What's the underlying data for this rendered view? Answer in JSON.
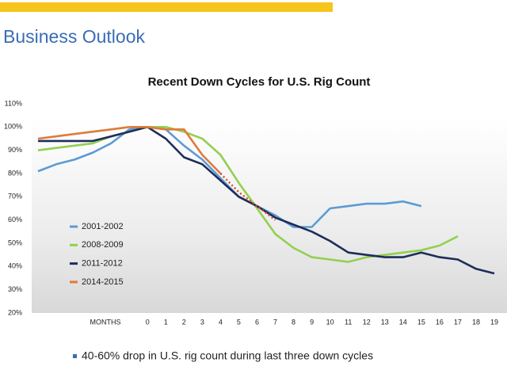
{
  "page_title": "Business Outlook",
  "footnote": "40-60% drop in U.S. rig count during last three down cycles",
  "chart_data": {
    "type": "line",
    "title": "Recent Down Cycles for U.S. Rig Count",
    "x_label": "MONTHS",
    "categories": [
      null,
      null,
      null,
      null,
      null,
      null,
      "0",
      "1",
      "2",
      "3",
      "4",
      "5",
      "6",
      "7",
      "8",
      "9",
      "10",
      "11",
      "12",
      "13",
      "14",
      "15",
      "16",
      "17",
      "18",
      "19"
    ],
    "ylim": [
      20,
      110
    ],
    "yticks": [
      {
        "value": 20,
        "label": "20%"
      },
      {
        "value": 30,
        "label": "30%"
      },
      {
        "value": 40,
        "label": "40%"
      },
      {
        "value": 50,
        "label": "50%"
      },
      {
        "value": 60,
        "label": "60%"
      },
      {
        "value": 70,
        "label": "70%"
      },
      {
        "value": 80,
        "label": "80%"
      },
      {
        "value": 90,
        "label": "90%"
      },
      {
        "value": 100,
        "label": "100%"
      },
      {
        "value": 110,
        "label": "110%"
      }
    ],
    "grid": false,
    "series": [
      {
        "name": "2001-2002",
        "color": "#5b9bd5",
        "values": [
          81,
          84,
          86,
          89,
          93,
          99,
          100,
          99,
          92,
          86,
          78,
          70,
          66,
          62,
          57,
          57,
          65,
          66,
          67,
          67,
          68,
          66,
          null,
          null,
          null,
          null
        ]
      },
      {
        "name": "2008-2009",
        "color": "#92d050",
        "values": [
          90,
          91,
          92,
          93,
          96,
          98,
          100,
          100,
          98,
          95,
          88,
          76,
          65,
          54,
          48,
          44,
          43,
          42,
          44,
          45,
          46,
          47,
          49,
          53,
          null,
          null
        ]
      },
      {
        "name": "2011-2012",
        "color": "#1f2d5a",
        "values": [
          94,
          94,
          94,
          94,
          96,
          98,
          100,
          95,
          87,
          84,
          77,
          70,
          66,
          61,
          58,
          55,
          51,
          46,
          45,
          44,
          44,
          46,
          44,
          43,
          39,
          37
        ]
      },
      {
        "name": "2014-2015",
        "color": "#e07b39",
        "values": [
          95,
          96,
          97,
          98,
          99,
          100,
          100,
          99,
          99,
          88,
          80,
          null,
          null,
          null,
          null,
          null,
          null,
          null,
          null,
          null,
          null,
          null,
          null,
          null,
          null,
          null
        ],
        "projected_values": [
          null,
          null,
          null,
          null,
          null,
          null,
          null,
          null,
          null,
          null,
          80,
          72,
          66,
          60,
          null,
          null,
          null,
          null,
          null,
          null,
          null,
          null,
          null,
          null,
          null,
          null
        ],
        "projected_color": "#d9481f"
      }
    ]
  }
}
